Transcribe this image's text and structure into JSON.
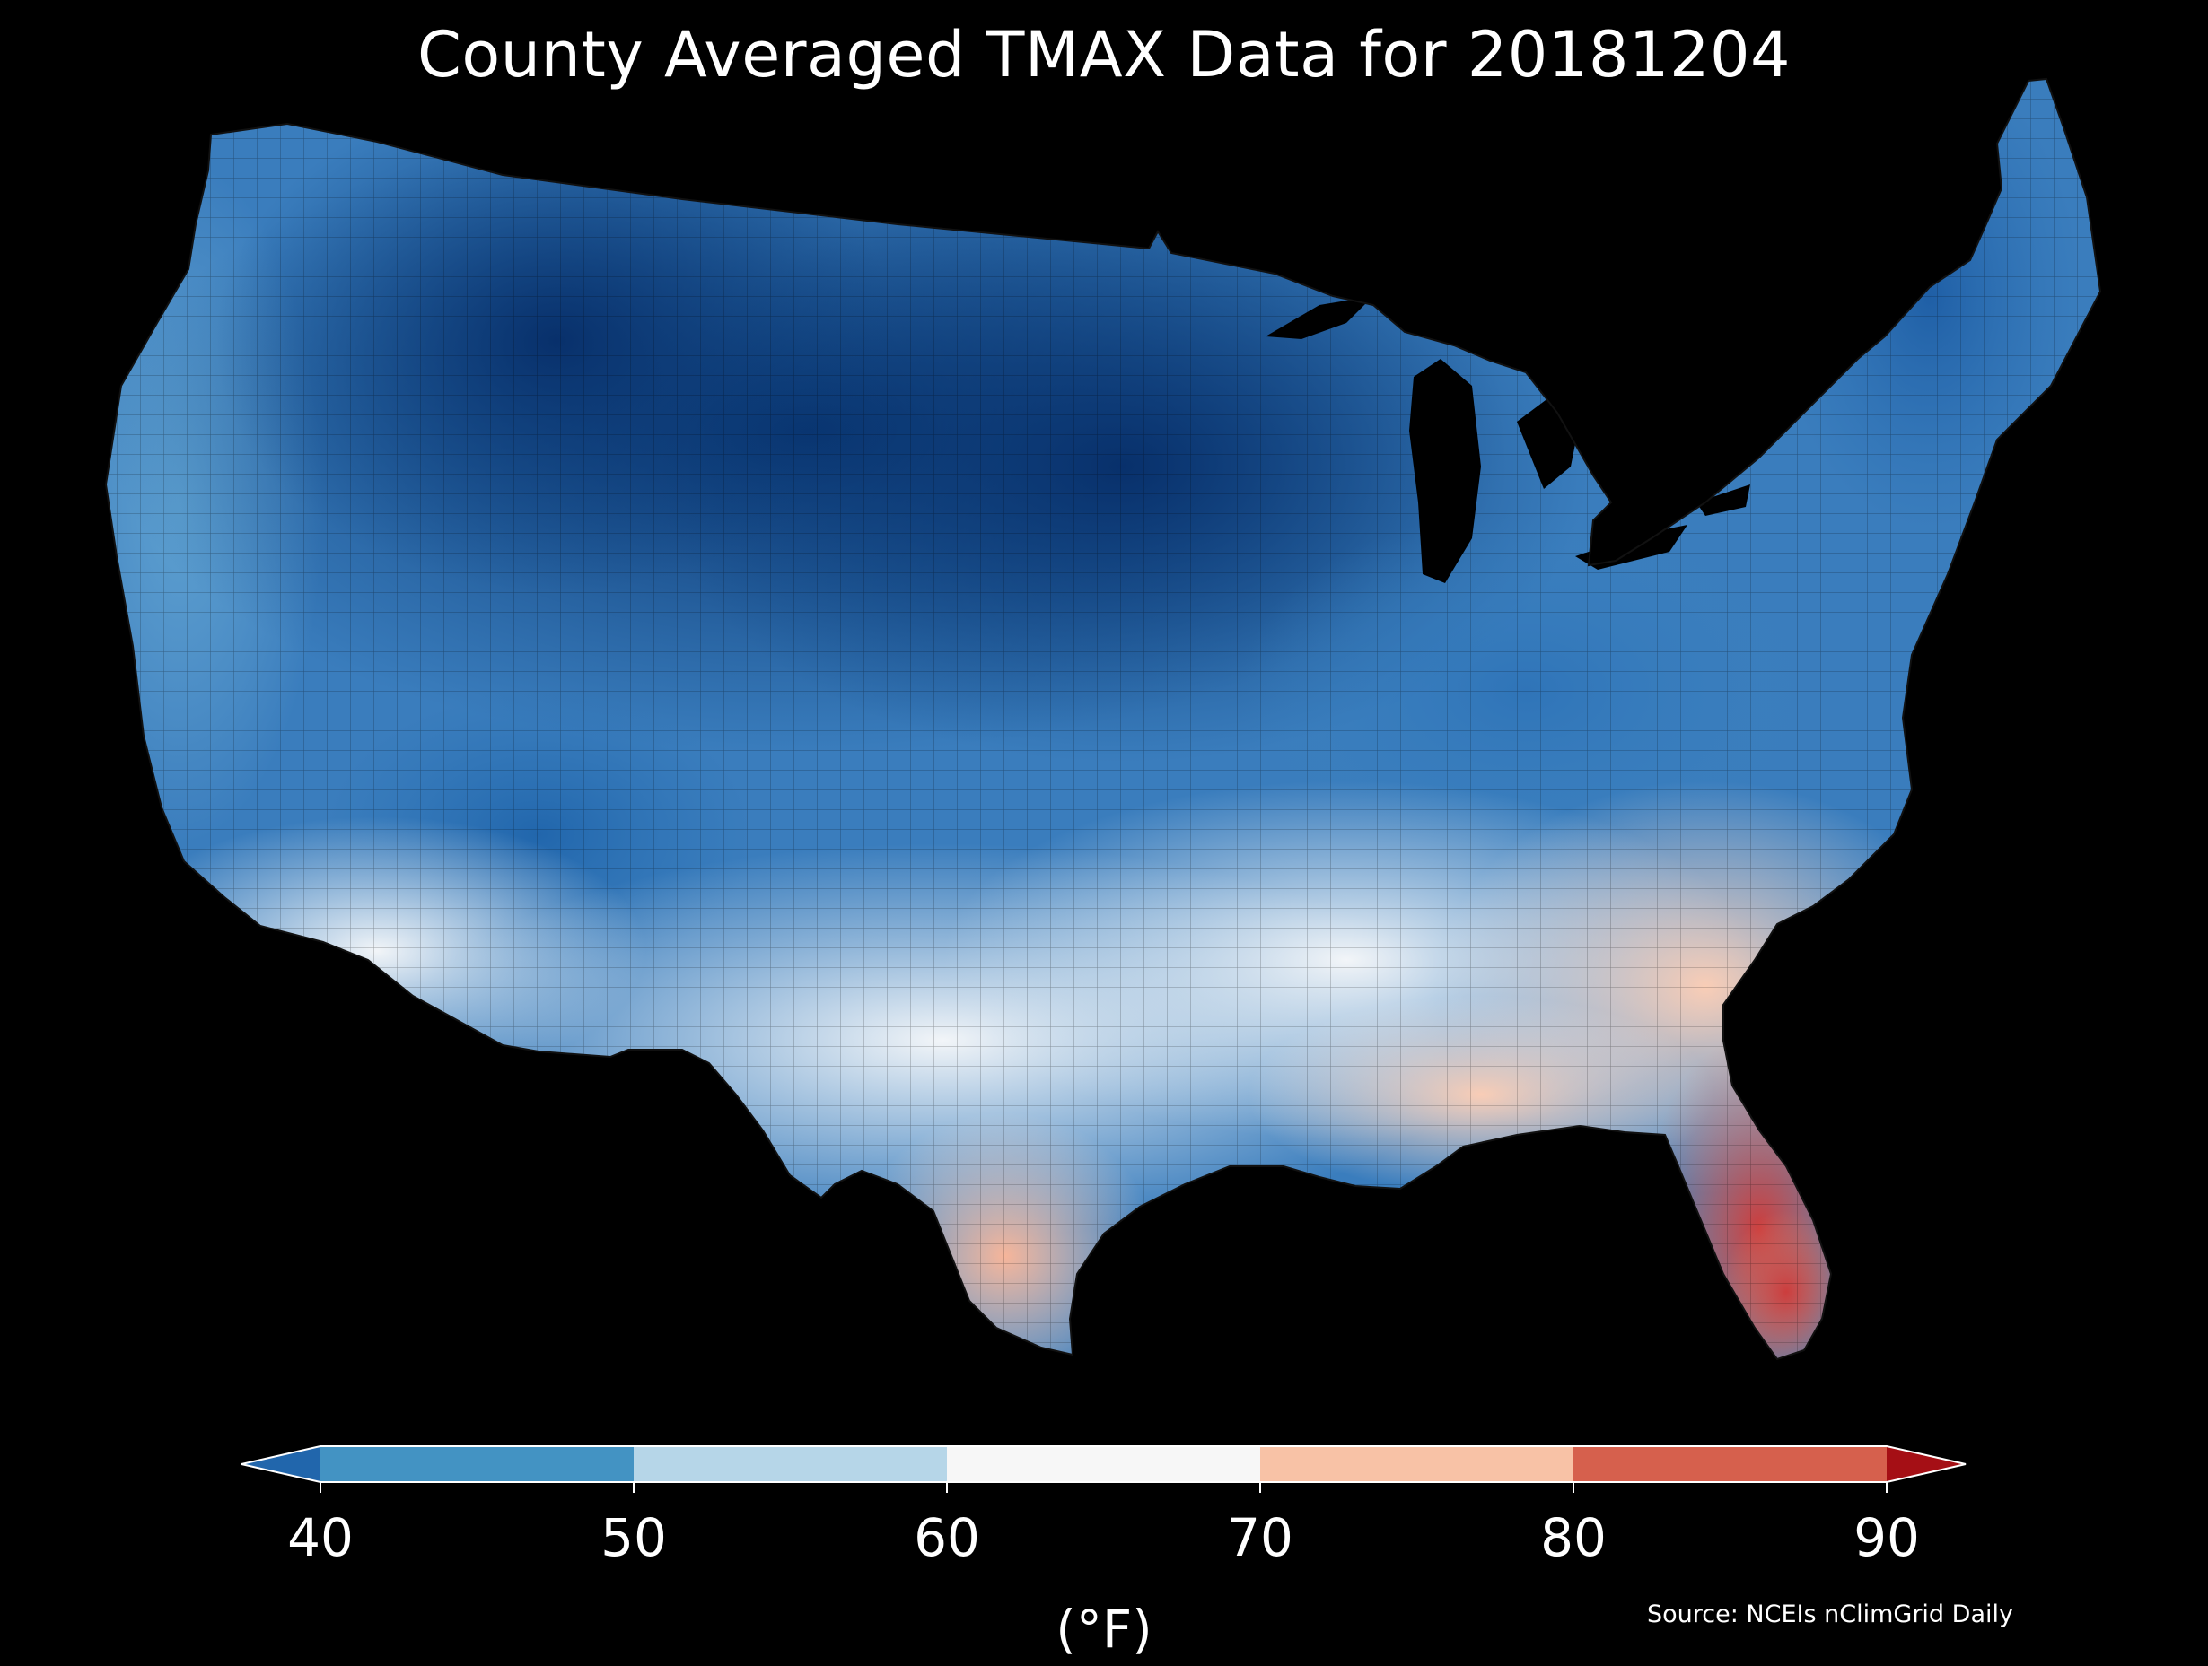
{
  "title": "County Averaged TMAX Data for 20181204",
  "colorbar": {
    "label": "(°F)",
    "ticks": [
      "40",
      "50",
      "60",
      "70",
      "80",
      "90"
    ],
    "min": 40,
    "max": 90,
    "extend": "both",
    "bins": [
      {
        "from": 40,
        "to": 50,
        "color": "#4393c3"
      },
      {
        "from": 50,
        "to": 60,
        "color": "#b6d6e8"
      },
      {
        "from": 60,
        "to": 70,
        "color": "#f7f7f7"
      },
      {
        "from": 70,
        "to": 80,
        "color": "#f8c2a6"
      },
      {
        "from": 80,
        "to": 90,
        "color": "#d6604d"
      }
    ],
    "under_color": "#2166ac",
    "over_color": "#a50f15"
  },
  "source": "Source: NCEIs nClimGrid Daily",
  "map": {
    "region": "Contiguous United States",
    "units": "°F",
    "background": "#000000",
    "regions": [
      {
        "name": "northern-plains-midwest",
        "value_range": "below 40",
        "color": "#0b3a72"
      },
      {
        "name": "northwest-interior",
        "value_range": "below 40",
        "color": "#1b5a9c"
      },
      {
        "name": "pacific-coast",
        "value_range": "40-50",
        "color": "#4a8fc7"
      },
      {
        "name": "ohio-valley",
        "value_range": "40-50",
        "color": "#3a7dbd"
      },
      {
        "name": "southwest-desert",
        "value_range": "50-70",
        "color": "#d7e7f1"
      },
      {
        "name": "southeast",
        "value_range": "60-80",
        "color": "#fbe1d3"
      },
      {
        "name": "florida",
        "value_range": "80-90",
        "color": "#d44b43"
      }
    ]
  }
}
